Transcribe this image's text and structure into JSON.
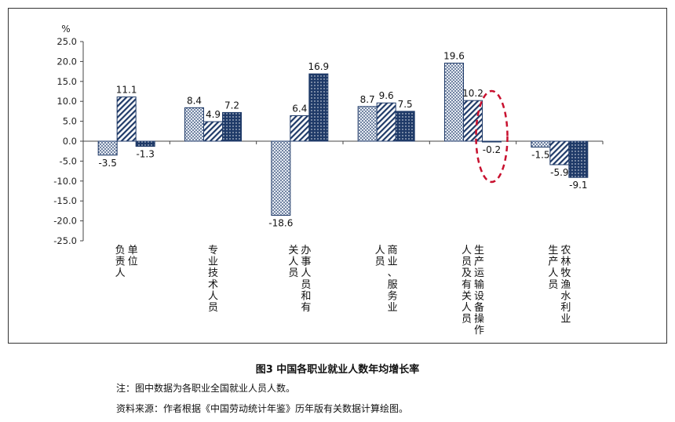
{
  "chart_data": {
    "type": "bar",
    "ylabel": "%",
    "ylim": [
      -25,
      25
    ],
    "yticks": [
      "25.0",
      "20.0",
      "15.0",
      "10.0",
      "5.0",
      "0.0",
      "-5.0",
      "-10.0",
      "-15.0",
      "-20.0",
      "-25.0"
    ],
    "categories": [
      [
        "单位",
        "负责人"
      ],
      [
        "专业技术人员"
      ],
      [
        "办事人员和有",
        "关人员"
      ],
      [
        "商业、服务业",
        "人员"
      ],
      [
        "生产运输设备操作",
        "人员及有关人员"
      ],
      [
        "农林牧渔水利业",
        "生产人员"
      ]
    ],
    "series": [
      {
        "values": [
          -3.5,
          8.4,
          -18.6,
          8.7,
          19.6,
          -1.5
        ],
        "pattern": "dots-light"
      },
      {
        "values": [
          11.1,
          4.9,
          6.4,
          9.6,
          10.2,
          -5.9
        ],
        "pattern": "hatch"
      },
      {
        "values": [
          -1.3,
          7.2,
          16.9,
          7.5,
          -0.2,
          -9.1
        ],
        "pattern": "dots-dark"
      }
    ],
    "data_labels": [
      [
        "-3.5",
        "11.1",
        "-1.3"
      ],
      [
        "8.4",
        "4.9",
        "7.2"
      ],
      [
        "-18.6",
        "6.4",
        "16.9"
      ],
      [
        "8.7",
        "9.6",
        "7.5"
      ],
      [
        "19.6",
        "10.2",
        "-0.2"
      ],
      [
        "-1.5",
        "-5.9",
        "-9.1"
      ]
    ],
    "annotation": {
      "type": "dashed-ellipse",
      "target_category": 4,
      "target_series": 2,
      "color": "#c8102e"
    },
    "grid": false
  },
  "caption": {
    "title": "图3  中国各职业就业人数年均增长率",
    "note": "注：图中数据为各职业全国就业人员人数。",
    "source": "资料来源：作者根据《中国劳动统计年鉴》历年版有关数据计算绘图。"
  },
  "colors": {
    "navy": "#1f3a68",
    "light_fill": "#c9d3e4",
    "annotation": "#c8102e"
  }
}
